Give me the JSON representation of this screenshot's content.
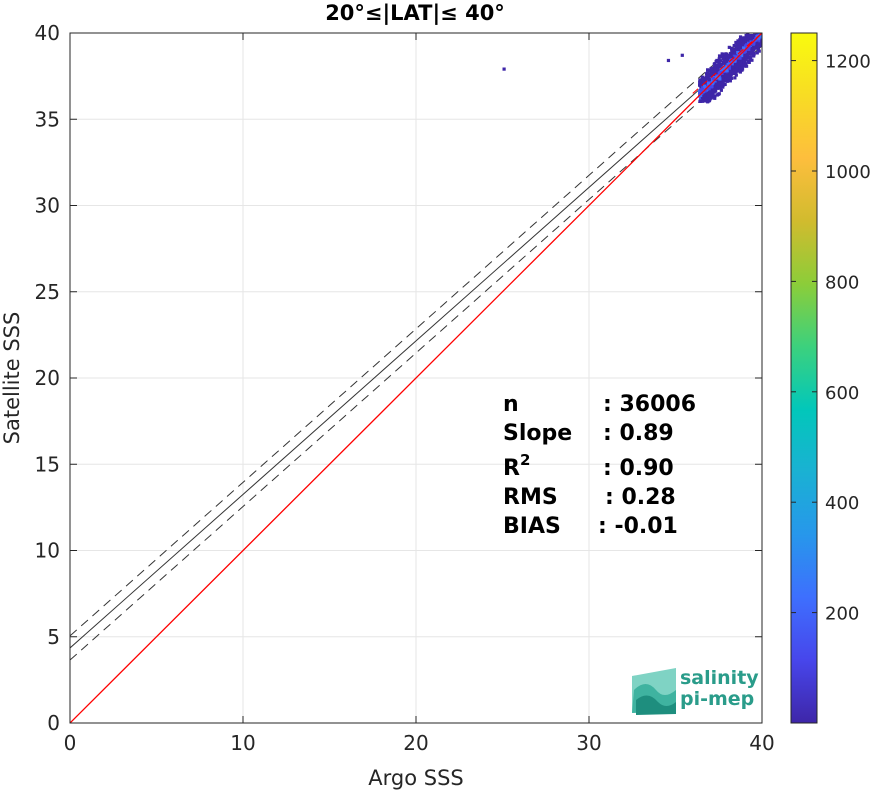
{
  "chart_data": {
    "type": "scatter",
    "title": "20°≤|LAT|≤ 40°",
    "xlabel": "Argo SSS",
    "ylabel": "Satellite SSS",
    "xlim": [
      0,
      40
    ],
    "ylim": [
      0,
      40
    ],
    "xticks": [
      "0",
      "10",
      "20",
      "30",
      "40"
    ],
    "yticks": [
      "0",
      "5",
      "10",
      "15",
      "20",
      "25",
      "30",
      "35",
      "40"
    ],
    "grid": true,
    "stats": [
      {
        "label": "n",
        "value": ": 36006"
      },
      {
        "label": "Slope",
        "value": ": 0.89"
      },
      {
        "label": "R",
        "sup": "2",
        "value": ": 0.90"
      },
      {
        "label": "RMS",
        "value": ": 0.28"
      },
      {
        "label": "BIAS",
        "value": ": -0.01"
      }
    ],
    "lines": {
      "identity": {
        "slope": 1,
        "intercept": 0,
        "color": "#ff0000"
      },
      "fit": {
        "slope": 0.89,
        "intercept": 4.35,
        "color": "#000000"
      },
      "fit_band_offset": 0.7
    },
    "density_cluster": {
      "x_range": [
        36.3,
        40
      ],
      "y_range": [
        36.3,
        40
      ],
      "outliers": [
        [
          25.0,
          38.0
        ],
        [
          34.5,
          38.5
        ],
        [
          35.3,
          38.8
        ]
      ]
    },
    "colorbar": {
      "min": 0,
      "max": 1250,
      "ticks": [
        "200",
        "400",
        "600",
        "800",
        "1000",
        "1200"
      ],
      "tick_values": [
        200,
        400,
        600,
        800,
        1000,
        1200
      ],
      "colormap": [
        "#3e26a8",
        "#4746eb",
        "#3e6ffe",
        "#2797eb",
        "#1ab1d3",
        "#02c7ba",
        "#3cd17d",
        "#8ccd39",
        "#d1bb2e",
        "#fdbe3d",
        "#f8dc24",
        "#f9fb0e"
      ]
    }
  },
  "logo": {
    "line1": "salinity",
    "line2": "pi-mep"
  }
}
